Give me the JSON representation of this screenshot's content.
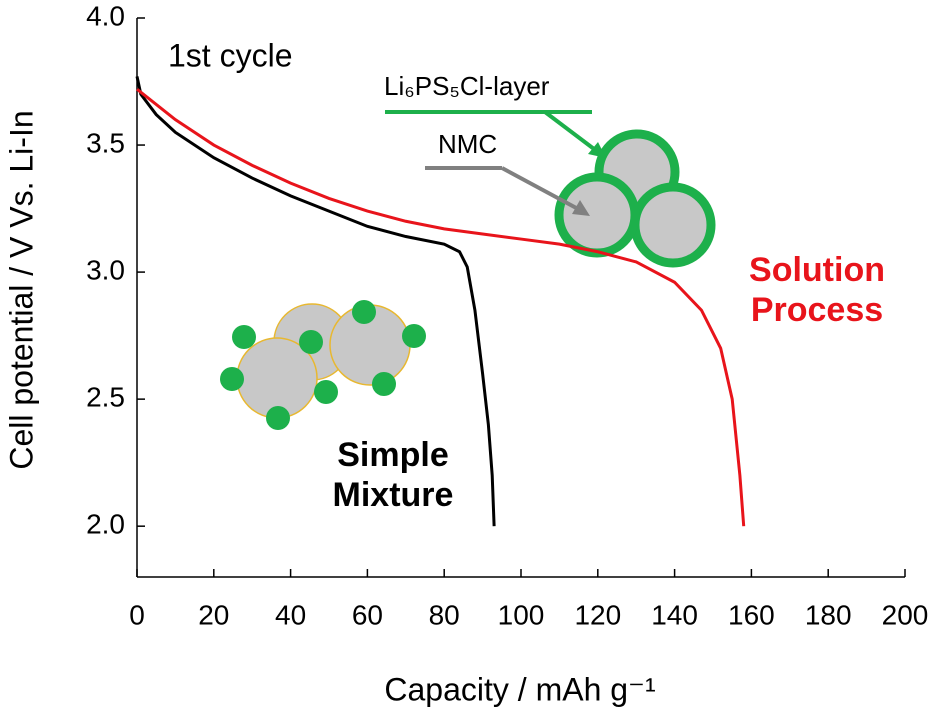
{
  "chart_data": {
    "type": "line",
    "annotations": [
      "1st cycle",
      "Li₆PS₅Cl-layer",
      "NMC"
    ],
    "xlabel": "Capacity / mAh g⁻¹",
    "ylabel": "Cell potential / V Vs. Li-In",
    "xlim": [
      0,
      200
    ],
    "xticks": [
      0,
      20,
      40,
      60,
      80,
      100,
      120,
      140,
      160,
      180,
      200
    ],
    "ylim": [
      1.8,
      4.0
    ],
    "yticks": [
      {
        "value": 2,
        "label": "2.0"
      },
      2.5,
      {
        "value": 3,
        "label": "3.0"
      },
      3.5,
      {
        "value": 4,
        "label": "4.0"
      }
    ],
    "series": [
      {
        "name": "Simple Mixture",
        "color": "#000000",
        "x": [
          0,
          1,
          5,
          10,
          20,
          30,
          40,
          50,
          60,
          70,
          80,
          84,
          86,
          88,
          90,
          91.5,
          92.5,
          93
        ],
        "values": [
          3.77,
          3.7,
          3.62,
          3.55,
          3.45,
          3.37,
          3.3,
          3.24,
          3.18,
          3.14,
          3.11,
          3.08,
          3.02,
          2.85,
          2.6,
          2.4,
          2.2,
          2.0
        ]
      },
      {
        "name": "Solution Process",
        "color": "#e8141b",
        "x": [
          0,
          10,
          20,
          30,
          40,
          50,
          60,
          70,
          80,
          90,
          100,
          110,
          120,
          130,
          140,
          147,
          152,
          155,
          157,
          158
        ],
        "values": [
          3.72,
          3.6,
          3.5,
          3.42,
          3.35,
          3.29,
          3.24,
          3.2,
          3.17,
          3.15,
          3.13,
          3.11,
          3.08,
          3.04,
          2.96,
          2.85,
          2.7,
          2.5,
          2.2,
          2.0
        ]
      }
    ]
  }
}
